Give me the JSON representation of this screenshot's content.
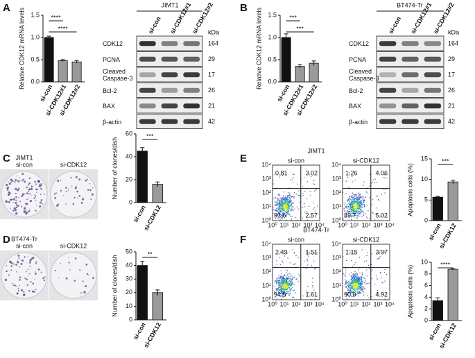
{
  "panel_labels": [
    "A",
    "B",
    "C",
    "D",
    "E",
    "F"
  ],
  "chart_data": [
    {
      "type": "bar",
      "ylabel": "Relative CDK12 mRNA levels",
      "categories": [
        "si-con",
        "si-CDK12#1",
        "si-CDK12#2"
      ],
      "values": [
        1.0,
        0.48,
        0.45
      ],
      "errors": [
        0.03,
        0.02,
        0.03
      ],
      "colors": [
        "#111111",
        "#9a9a9a",
        "#9a9a9a"
      ],
      "ylim": [
        0,
        1.5
      ],
      "yticks": [
        {
          "value": 0,
          "label": "0.0"
        },
        0.5,
        {
          "value": 1,
          "label": "1.0"
        },
        1.5
      ],
      "annotations": [
        "****",
        "****"
      ]
    },
    {
      "type": "bar",
      "ylabel": "Relative CDK12 mRNA levels",
      "categories": [
        "si-con",
        "si-CDK12#1",
        "si-CDK12#2"
      ],
      "values": [
        1.0,
        0.35,
        0.42
      ],
      "errors": [
        0.08,
        0.04,
        0.05
      ],
      "colors": [
        "#111111",
        "#9a9a9a",
        "#9a9a9a"
      ],
      "ylim": [
        0,
        1.5
      ],
      "yticks": [
        {
          "value": 0,
          "label": "0.0"
        },
        0.5,
        {
          "value": 1,
          "label": "1.0"
        },
        1.5
      ],
      "annotations": [
        "***",
        "***"
      ]
    },
    {
      "type": "bar",
      "ylabel": "Number of clones/dish",
      "categories": [
        "si-con",
        "si-CDK12"
      ],
      "values": [
        45,
        16
      ],
      "errors": [
        3,
        2
      ],
      "colors": [
        "#111111",
        "#9a9a9a"
      ],
      "ylim": [
        0,
        60
      ],
      "yticks": [
        0,
        20,
        40,
        60
      ],
      "annotations": [
        "***"
      ]
    },
    {
      "type": "bar",
      "ylabel": "Number of clones/dish",
      "categories": [
        "si-con",
        "si-CDK12"
      ],
      "values": [
        40,
        20
      ],
      "errors": [
        3,
        2
      ],
      "colors": [
        "#111111",
        "#9a9a9a"
      ],
      "ylim": [
        0,
        50
      ],
      "yticks": [
        0,
        10,
        20,
        30,
        40,
        50
      ],
      "annotations": [
        "**"
      ]
    },
    {
      "type": "bar",
      "ylabel": "Apoptosis cells (%)",
      "categories": [
        "si-con",
        "si-CDK12"
      ],
      "values": [
        5.7,
        9.4
      ],
      "errors": [
        0.2,
        0.4
      ],
      "colors": [
        "#111111",
        "#9a9a9a"
      ],
      "ylim": [
        0,
        15
      ],
      "yticks": [
        0,
        5,
        10,
        15
      ],
      "annotations": [
        "***"
      ]
    },
    {
      "type": "bar",
      "ylabel": "Apoptosis cells (%)",
      "categories": [
        "si-con",
        "si-CDK12"
      ],
      "values": [
        3.4,
        8.8
      ],
      "errors": [
        0.5,
        0.1
      ],
      "colors": [
        "#111111",
        "#9a9a9a"
      ],
      "ylim": [
        0,
        10
      ],
      "yticks": [
        0,
        2,
        4,
        6,
        8,
        10
      ],
      "annotations": [
        "****"
      ]
    }
  ],
  "blots": [
    {
      "title": "JIMT1",
      "unit": "kDa",
      "lanes": [
        "si-con",
        "si-CDK12#1",
        "si-CDK12#2"
      ],
      "rows": [
        {
          "protein": "CDK12",
          "kda": "164"
        },
        {
          "protein": "PCNA",
          "kda": "29"
        },
        {
          "protein": "Cleaved Caspase-3",
          "kda": "17"
        },
        {
          "protein": "Bcl-2",
          "kda": "26"
        },
        {
          "protein": "BAX",
          "kda": "21"
        },
        {
          "protein": "β-actin",
          "kda": "42"
        }
      ]
    },
    {
      "title": "BT474-Tr",
      "unit": "kDa",
      "lanes": [
        "si-con",
        "si-CDK12#1",
        "si-CDK12#2"
      ],
      "rows": [
        {
          "protein": "CDK12",
          "kda": "164"
        },
        {
          "protein": "PCNA",
          "kda": "29"
        },
        {
          "protein": "Cleaved Caspase-3",
          "kda": "17"
        },
        {
          "protein": "Bcl-2",
          "kda": "26"
        },
        {
          "protein": "BAX",
          "kda": "21"
        },
        {
          "protein": "β-actin",
          "kda": "42"
        }
      ]
    }
  ],
  "colonies": [
    {
      "title": "JIMT1",
      "labels": [
        "si-con",
        "si-CDK12"
      ]
    },
    {
      "title": "BT474-Tr",
      "labels": [
        "si-con",
        "si-CDK12"
      ]
    }
  ],
  "flow": [
    {
      "title": "JIMT1",
      "axis_ticks": [
        "10⁰",
        "10¹",
        "10²",
        "10³",
        "10⁴"
      ],
      "plots": [
        {
          "label": "si-con",
          "quadrants": [
            "0.81",
            "3.02",
            "93.6",
            "2.57"
          ]
        },
        {
          "label": "si-CDK12",
          "quadrants": [
            "1.26",
            "4.06",
            "89.7",
            "5.02"
          ]
        }
      ]
    },
    {
      "title": "BT474-Tr",
      "axis_ticks": [
        "10⁰",
        "10¹",
        "10²",
        "10³",
        "10⁴"
      ],
      "plots": [
        {
          "label": "si-con",
          "quadrants": [
            "2.43",
            "1.51",
            "94.5",
            "1.61"
          ]
        },
        {
          "label": "si-CDK12",
          "quadrants": [
            "1.15",
            "3.97",
            "90.0",
            "4.92"
          ]
        }
      ]
    }
  ]
}
